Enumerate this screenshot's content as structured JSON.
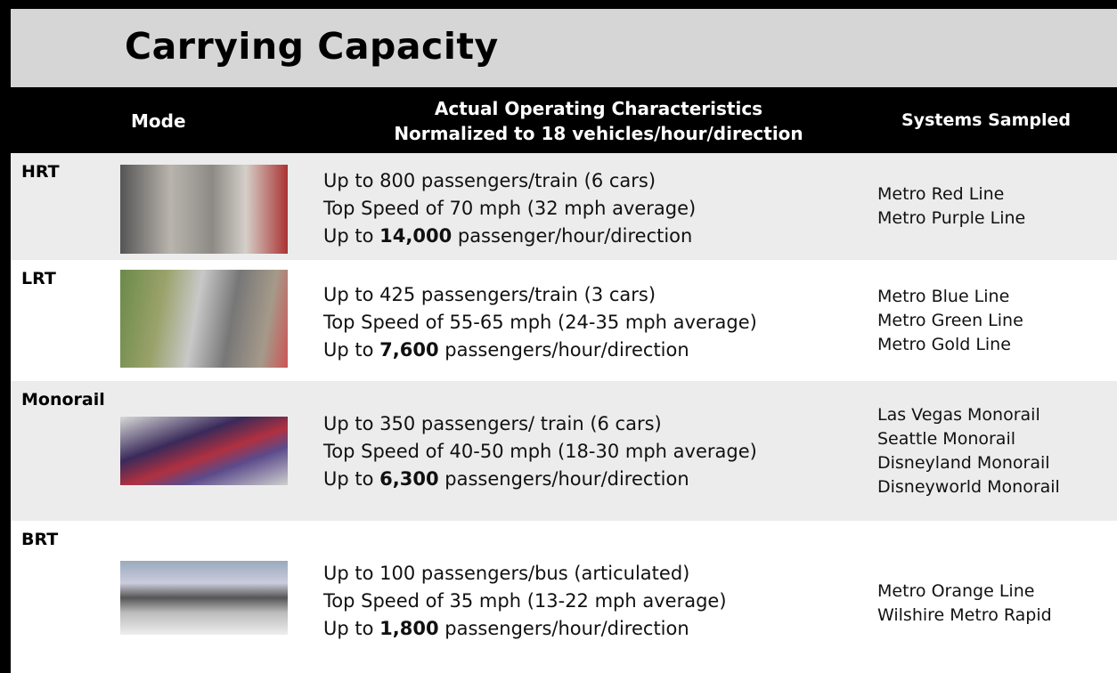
{
  "title": "Carrying Capacity",
  "header": {
    "mode": "Mode",
    "characteristics": [
      "Actual Operating Characteristics",
      "Normalized to 18 vehicles/hour/direction"
    ],
    "systems": "Systems Sampled"
  },
  "rows": [
    {
      "mode": "HRT",
      "lines": [
        "Up to 800 passengers/train (6 cars)",
        "Top Speed of 70 mph (32 mph average)"
      ],
      "capacity": {
        "prefix": "Up to ",
        "value": "14,000",
        "suffix": " passenger/hour/direction"
      },
      "systems": [
        "Metro Red Line",
        "Metro Purple Line"
      ]
    },
    {
      "mode": "LRT",
      "lines": [
        "Up to 425 passengers/train (3 cars)",
        "Top Speed of 55-65 mph (24-35 mph average)"
      ],
      "capacity": {
        "prefix": "Up to ",
        "value": "7,600",
        "suffix": " passengers/hour/direction"
      },
      "systems": [
        "Metro Blue Line",
        "Metro Green Line",
        "Metro Gold Line"
      ]
    },
    {
      "mode": "Monorail",
      "lines": [
        "Up to 350 passengers/ train (6 cars)",
        "Top Speed of 40-50 mph (18-30 mph average)"
      ],
      "capacity": {
        "prefix": "Up to ",
        "value": "6,300",
        "suffix": " passengers/hour/direction"
      },
      "systems": [
        "Las Vegas Monorail",
        "Seattle Monorail",
        "Disneyland Monorail",
        "Disneyworld Monorail"
      ]
    },
    {
      "mode": "BRT",
      "lines": [
        "Up to 100 passengers/bus (articulated)",
        "Top Speed of 35 mph (13-22 mph average)"
      ],
      "capacity": {
        "prefix": "Up to ",
        "value": "1,800",
        "suffix": " passengers/hour/direction"
      },
      "systems": [
        "Metro Orange Line",
        "Wilshire Metro Rapid"
      ]
    }
  ]
}
